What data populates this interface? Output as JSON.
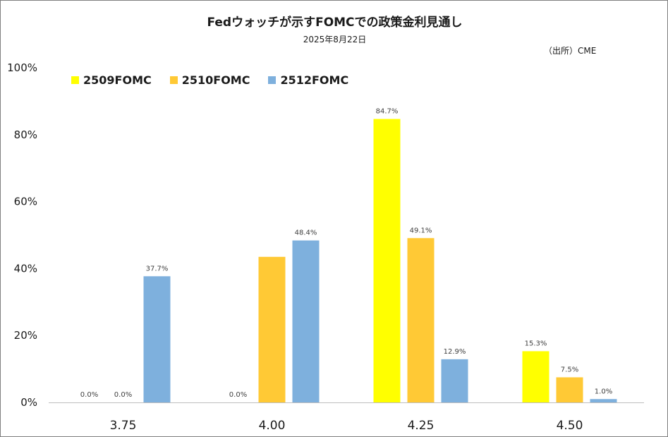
{
  "chart_data": {
    "type": "bar",
    "title": "Fedウォッチが示すFOMCでの政策金利見通し",
    "subtitle": "2025年8月22日",
    "source": "（出所）CME",
    "categories": [
      "3.75",
      "4.00",
      "4.25",
      "4.50"
    ],
    "series": [
      {
        "name": "2509FOMC",
        "color": "#ffff00",
        "values": [
          0.0,
          0.0,
          84.7,
          15.3
        ]
      },
      {
        "name": "2510FOMC",
        "color": "#ffc935",
        "values": [
          0.0,
          43.5,
          49.1,
          7.5
        ]
      },
      {
        "name": "2512FOMC",
        "color": "#7eb0dd",
        "values": [
          37.7,
          48.4,
          12.9,
          1.0
        ]
      }
    ],
    "data_labels": [
      [
        "0.0%",
        "0.0%",
        "84.7%",
        "15.3%"
      ],
      [
        "0.0%",
        "43.5%",
        "49.1%",
        "7.5%"
      ],
      [
        "37.7%",
        "48.4%",
        "12.9%",
        "1.0%"
      ]
    ],
    "show_zero_label": [
      [
        true,
        true,
        true,
        true
      ],
      [
        true,
        false,
        true,
        true
      ],
      [
        true,
        true,
        true,
        true
      ]
    ],
    "ylim": [
      0,
      100
    ],
    "yticks": [
      0,
      20,
      40,
      60,
      80,
      100
    ],
    "ytick_labels": [
      "0%",
      "20%",
      "40%",
      "60%",
      "80%",
      "100%"
    ],
    "legend_position": "top-left",
    "grid": false
  }
}
